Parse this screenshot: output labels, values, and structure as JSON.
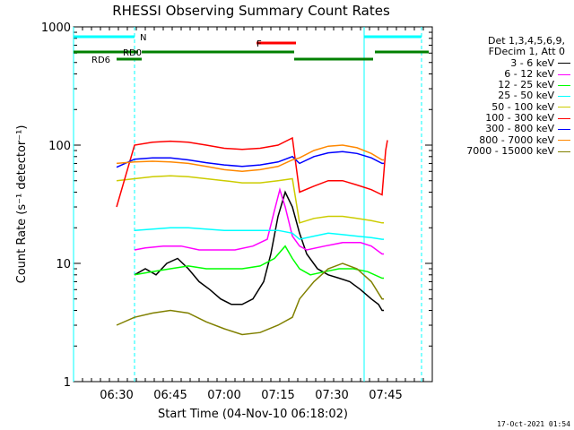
{
  "chart_data": {
    "type": "line",
    "title": "RHESSI Observing Summary Count Rates",
    "xlabel": "Start Time (04-Nov-10 06:18:02)",
    "ylabel": "Count Rate (s⁻¹ detector⁻¹)",
    "yscale": "log",
    "ylim": [
      1,
      1000
    ],
    "xlim_minutes": [
      0,
      100
    ],
    "x_ticks": [
      {
        "min": 12,
        "label": "06:30"
      },
      {
        "min": 27,
        "label": "06:45"
      },
      {
        "min": 42,
        "label": "07:00"
      },
      {
        "min": 57,
        "label": "07:15"
      },
      {
        "min": 72,
        "label": "07:30"
      },
      {
        "min": 87,
        "label": "07:45"
      }
    ],
    "y_ticks": [
      {
        "value": 1,
        "label": "1"
      },
      {
        "value": 10,
        "label": "10"
      },
      {
        "value": 100,
        "label": "100"
      },
      {
        "value": 1000,
        "label": "1000"
      }
    ],
    "legend_header": [
      "Det 1,3,4,5,6,9,",
      "FDecim 1, Att 0"
    ],
    "series": [
      {
        "name": "3 - 6 keV",
        "color": "#000000",
        "x": [
          17,
          20,
          23,
          26,
          29,
          32,
          35,
          38,
          41,
          44,
          47,
          50,
          53,
          55,
          57,
          59,
          61,
          63,
          65,
          68,
          71,
          74,
          77,
          80,
          83,
          85,
          86,
          86.5
        ],
        "values": [
          8,
          9,
          8,
          10,
          11,
          9,
          7,
          6,
          5,
          4.5,
          4.5,
          5,
          7,
          12,
          25,
          40,
          30,
          18,
          12,
          9,
          8,
          7.5,
          7,
          6,
          5,
          4.5,
          4,
          4
        ]
      },
      {
        "name": "6 - 12 keV",
        "color": "#ff00ff",
        "x": [
          17,
          20,
          25,
          30,
          35,
          40,
          45,
          50,
          54,
          56,
          57.5,
          59,
          61,
          63,
          65,
          70,
          75,
          80,
          83,
          86,
          86.5
        ],
        "values": [
          13,
          13.5,
          14,
          14,
          13,
          13,
          13,
          14,
          16,
          28,
          42,
          30,
          17,
          14,
          13,
          14,
          15,
          15,
          14,
          12,
          12
        ]
      },
      {
        "name": "12 - 25 keV",
        "color": "#00ff00",
        "x": [
          17,
          22,
          27,
          32,
          37,
          42,
          47,
          52,
          56,
          59,
          61,
          63,
          66,
          70,
          74,
          78,
          82,
          86,
          86.5
        ],
        "values": [
          8,
          8.5,
          9,
          9.5,
          9,
          9,
          9,
          9.5,
          11,
          14,
          11,
          9,
          8,
          8.5,
          9,
          9,
          8.5,
          7.5,
          7.5
        ]
      },
      {
        "name": "25 - 50 keV",
        "color": "#00ffff",
        "x": [
          17,
          22,
          27,
          32,
          37,
          42,
          47,
          52,
          57,
          61,
          63,
          67,
          71,
          75,
          79,
          83,
          86,
          86.5
        ],
        "values": [
          19,
          19.5,
          20,
          20,
          19.5,
          19,
          19,
          19,
          19,
          18,
          16,
          17,
          18,
          17.5,
          17,
          16.5,
          16,
          16
        ]
      },
      {
        "name": "50 - 100 keV",
        "color": "#cccc00",
        "x": [
          12,
          17,
          22,
          27,
          32,
          37,
          42,
          47,
          52,
          57,
          61,
          63,
          67,
          71,
          75,
          79,
          83,
          86,
          86.5
        ],
        "values": [
          50,
          52,
          54,
          55,
          54,
          52,
          50,
          48,
          48,
          50,
          52,
          22,
          24,
          25,
          25,
          24,
          23,
          22,
          22
        ]
      },
      {
        "name": "100 - 300 keV",
        "color": "#ff0000",
        "x": [
          12,
          17,
          22,
          27,
          32,
          37,
          42,
          47,
          52,
          57,
          61,
          63,
          67,
          71,
          75,
          79,
          83,
          86,
          87,
          87.5
        ],
        "values": [
          30,
          100,
          106,
          108,
          106,
          100,
          94,
          92,
          94,
          100,
          115,
          40,
          45,
          50,
          50,
          46,
          42,
          38,
          90,
          110
        ]
      },
      {
        "name": "300 - 800 keV",
        "color": "#0000ff",
        "x": [
          12,
          17,
          22,
          27,
          32,
          37,
          42,
          47,
          52,
          57,
          61,
          63,
          67,
          71,
          75,
          79,
          83,
          86,
          86.5
        ],
        "values": [
          65,
          76,
          78,
          78,
          75,
          71,
          68,
          66,
          68,
          72,
          80,
          70,
          80,
          86,
          88,
          85,
          78,
          70,
          70
        ]
      },
      {
        "name": "800 - 7000 keV",
        "color": "#ff8800",
        "x": [
          12,
          17,
          22,
          27,
          32,
          37,
          42,
          47,
          52,
          57,
          61,
          63,
          67,
          71,
          75,
          79,
          83,
          86,
          86.5
        ],
        "values": [
          70,
          72,
          73,
          72,
          70,
          66,
          62,
          60,
          62,
          66,
          75,
          78,
          90,
          98,
          100,
          95,
          85,
          75,
          75
        ]
      },
      {
        "name": "7000 - 15000 keV",
        "color": "#808000",
        "x": [
          12,
          17,
          22,
          27,
          32,
          37,
          42,
          47,
          52,
          57,
          61,
          63,
          67,
          71,
          75,
          79,
          83,
          86,
          86.5
        ],
        "values": [
          3,
          3.5,
          3.8,
          4,
          3.8,
          3.2,
          2.8,
          2.5,
          2.6,
          3,
          3.5,
          5,
          7,
          9,
          10,
          9,
          7,
          5,
          5
        ]
      }
    ],
    "vertical_lines": [
      {
        "min": 0,
        "style": "solid"
      },
      {
        "min": 17,
        "style": "dashed"
      },
      {
        "min": 81,
        "style": "solid"
      },
      {
        "min": 97,
        "style": "dashed"
      }
    ],
    "state_bars": [
      {
        "label": "N",
        "color": "#00ffff",
        "segments": [
          [
            0,
            17,
            1
          ],
          [
            81,
            97,
            1
          ]
        ]
      },
      {
        "label": "F",
        "color": "#ff0000",
        "segments": [
          [
            51,
            62,
            2
          ]
        ]
      },
      {
        "label": "RD0",
        "color": "#008000",
        "segments": [
          [
            0,
            18,
            3
          ],
          [
            19,
            61.5,
            3
          ],
          [
            84,
            99,
            3
          ]
        ]
      },
      {
        "label": "RD6",
        "color": "#008000",
        "segments": [
          [
            12,
            19,
            4
          ],
          [
            61.5,
            83.5,
            4
          ]
        ]
      }
    ]
  },
  "footer": {
    "date": "17-Oct-2021 01:54"
  }
}
